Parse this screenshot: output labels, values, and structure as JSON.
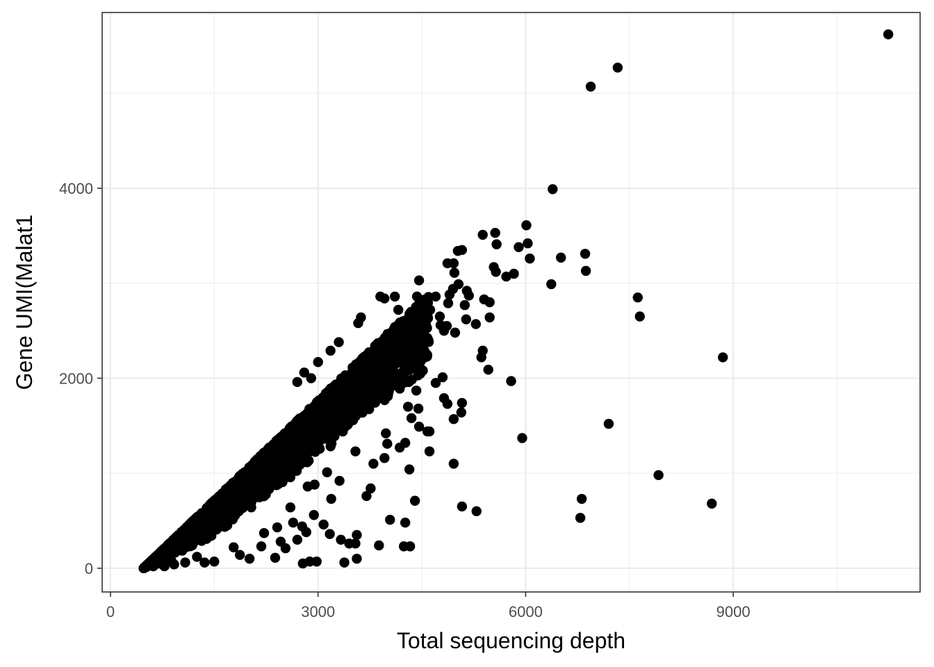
{
  "chart_data": {
    "type": "scatter",
    "title": "",
    "xlabel": "Total sequencing depth",
    "ylabel": "Gene UMI(Malat1",
    "xlim": [
      -120,
      11700
    ],
    "ylim": [
      -250,
      5850
    ],
    "x_ticks": [
      0,
      3000,
      6000,
      9000
    ],
    "x_tick_labels": [
      "0",
      "3000",
      "6000",
      "9000"
    ],
    "y_ticks": [
      0,
      2000,
      4000
    ],
    "y_tick_labels": [
      "0",
      "2000",
      "4000"
    ],
    "grid": true,
    "legend": "none",
    "point_color": "#000000",
    "grid_color": "#ebebeb",
    "panel_border_color": "#333333",
    "dense_band": {
      "description_only_for_generation": false,
      "x_range": [
        480,
        4600
      ],
      "n_points": 3200
    },
    "points": [
      [
        11240,
        5620
      ],
      [
        7330,
        5270
      ],
      [
        6940,
        5070
      ],
      [
        6390,
        3990
      ],
      [
        6010,
        3610
      ],
      [
        5560,
        3530
      ],
      [
        5380,
        3510
      ],
      [
        6030,
        3420
      ],
      [
        5580,
        3410
      ],
      [
        5900,
        3380
      ],
      [
        6860,
        3310
      ],
      [
        6510,
        3270
      ],
      [
        6060,
        3260
      ],
      [
        5540,
        3170
      ],
      [
        5570,
        3120
      ],
      [
        6870,
        3130
      ],
      [
        5830,
        3100
      ],
      [
        5720,
        3070
      ],
      [
        6370,
        2990
      ],
      [
        7620,
        2850
      ],
      [
        5400,
        2830
      ],
      [
        5480,
        2800
      ],
      [
        7650,
        2650
      ],
      [
        5480,
        2640
      ],
      [
        5280,
        2570
      ],
      [
        5380,
        2290
      ],
      [
        5360,
        2220
      ],
      [
        8850,
        2220
      ],
      [
        5460,
        2090
      ],
      [
        5790,
        1970
      ],
      [
        7200,
        1520
      ],
      [
        5950,
        1370
      ],
      [
        4960,
        1100
      ],
      [
        7920,
        980
      ],
      [
        6810,
        730
      ],
      [
        8690,
        680
      ],
      [
        5080,
        650
      ],
      [
        5290,
        600
      ],
      [
        6790,
        530
      ],
      [
        4320,
        1040
      ],
      [
        4400,
        710
      ],
      [
        4040,
        510
      ],
      [
        4260,
        480
      ],
      [
        4330,
        230
      ],
      [
        4240,
        230
      ],
      [
        3880,
        240
      ],
      [
        3560,
        350
      ],
      [
        3540,
        260
      ],
      [
        3450,
        260
      ],
      [
        3380,
        60
      ],
      [
        3560,
        100
      ],
      [
        2780,
        50
      ],
      [
        2880,
        70
      ],
      [
        2980,
        70
      ],
      [
        2010,
        100
      ],
      [
        2380,
        110
      ],
      [
        4700,
        1950
      ],
      [
        4800,
        2010
      ],
      [
        4870,
        1730
      ],
      [
        4960,
        1570
      ],
      [
        5080,
        1740
      ],
      [
        5070,
        1640
      ],
      [
        4580,
        1440
      ],
      [
        4610,
        1440
      ],
      [
        4450,
        1680
      ],
      [
        4610,
        1230
      ],
      [
        4460,
        1490
      ],
      [
        4820,
        1790
      ],
      [
        4350,
        1580
      ],
      [
        4420,
        1870
      ],
      [
        4300,
        1700
      ],
      [
        4820,
        2500
      ],
      [
        4980,
        2480
      ],
      [
        4620,
        2720
      ],
      [
        4700,
        2860
      ],
      [
        4900,
        2880
      ],
      [
        4880,
        2790
      ],
      [
        4760,
        2650
      ],
      [
        5030,
        2990
      ],
      [
        5150,
        2920
      ],
      [
        5180,
        2870
      ],
      [
        5140,
        2620
      ],
      [
        5120,
        2770
      ],
      [
        4950,
        2940
      ],
      [
        4870,
        3210
      ],
      [
        4960,
        3210
      ],
      [
        5020,
        3340
      ],
      [
        5080,
        3350
      ],
      [
        4970,
        3110
      ],
      [
        4460,
        3030
      ],
      [
        4430,
        2860
      ],
      [
        4110,
        2860
      ],
      [
        3900,
        2860
      ],
      [
        4770,
        2560
      ],
      [
        4860,
        2550
      ],
      [
        3540,
        1230
      ],
      [
        3310,
        920
      ],
      [
        3130,
        1010
      ],
      [
        2950,
        880
      ],
      [
        2850,
        860
      ],
      [
        3190,
        730
      ],
      [
        2940,
        560
      ],
      [
        2770,
        440
      ],
      [
        2830,
        380
      ],
      [
        2460,
        280
      ],
      [
        2220,
        370
      ],
      [
        2410,
        430
      ],
      [
        2640,
        480
      ],
      [
        3080,
        460
      ],
      [
        3170,
        360
      ],
      [
        3330,
        300
      ],
      [
        3700,
        760
      ],
      [
        3760,
        840
      ],
      [
        3800,
        1100
      ],
      [
        3960,
        1160
      ],
      [
        4000,
        1310
      ],
      [
        3980,
        1420
      ],
      [
        4260,
        1320
      ],
      [
        4180,
        1270
      ],
      [
        2600,
        640
      ],
      [
        2700,
        300
      ],
      [
        2530,
        210
      ],
      [
        2180,
        230
      ],
      [
        1870,
        140
      ],
      [
        1780,
        220
      ],
      [
        1500,
        70
      ],
      [
        1360,
        60
      ],
      [
        1250,
        120
      ],
      [
        1080,
        60
      ],
      [
        920,
        40
      ],
      [
        880,
        80
      ],
      [
        620,
        20
      ],
      [
        700,
        50
      ],
      [
        780,
        20
      ],
      [
        540,
        40
      ],
      [
        3300,
        2380
      ],
      [
        3180,
        2290
      ],
      [
        3580,
        2580
      ],
      [
        3620,
        2640
      ],
      [
        3960,
        2840
      ],
      [
        4160,
        2720
      ],
      [
        3000,
        2170
      ],
      [
        2800,
        2060
      ],
      [
        2700,
        1960
      ],
      [
        2900,
        2000
      ]
    ]
  }
}
